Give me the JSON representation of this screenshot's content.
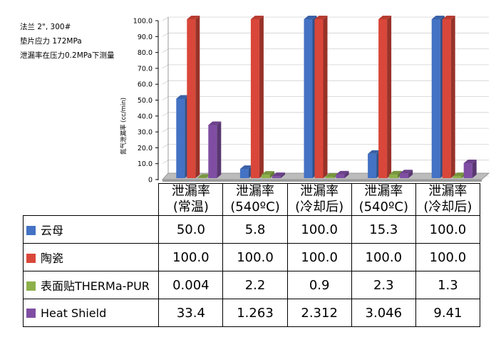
{
  "notes": [
    "法兰 2\", 300#",
    "垫片应力 172MPa",
    "泄漏率在压力0.2MPa下测量"
  ],
  "chart_data": {
    "type": "bar",
    "title": "",
    "ylabel": "氮气泄漏率 (cc/min)",
    "ylim": [
      0,
      100
    ],
    "yticks": [
      "0",
      "10.0",
      "20.0",
      "30.0",
      "40.0",
      "50.0",
      "60.0",
      "70.0",
      "80.0",
      "90.0",
      "100.0"
    ],
    "categories": [
      {
        "line1": "泄漏率",
        "line2": "(常温)"
      },
      {
        "line1": "泄漏率",
        "line2": "(540ºC)"
      },
      {
        "line1": "泄漏率",
        "line2": "(冷却后)"
      },
      {
        "line1": "泄漏率",
        "line2": "(540ºC)"
      },
      {
        "line1": "泄漏率",
        "line2": "(冷却后)"
      }
    ],
    "series": [
      {
        "name": "云母",
        "color": "#4472c4",
        "values": [
          50.0,
          5.8,
          100.0,
          15.3,
          100.0
        ],
        "labels": [
          "50.0",
          "5.8",
          "100.0",
          "15.3",
          "100.0"
        ]
      },
      {
        "name": "陶瓷",
        "color": "#d9473a",
        "values": [
          100.0,
          100.0,
          100.0,
          100.0,
          100.0
        ],
        "labels": [
          "100.0",
          "100.0",
          "100.0",
          "100.0",
          "100.0"
        ]
      },
      {
        "name": "表面贴THERMa-PUR",
        "color": "#8db04a",
        "values": [
          0.004,
          2.2,
          0.9,
          2.3,
          1.3
        ],
        "labels": [
          "0.004",
          "2.2",
          "0.9",
          "2.3",
          "1.3"
        ]
      },
      {
        "name": "Heat Shield",
        "color": "#7f4ea3",
        "values": [
          33.4,
          1.263,
          2.312,
          3.046,
          9.41
        ],
        "labels": [
          "33.4",
          "1.263",
          "2.312",
          "3.046",
          "9.41"
        ]
      }
    ]
  }
}
